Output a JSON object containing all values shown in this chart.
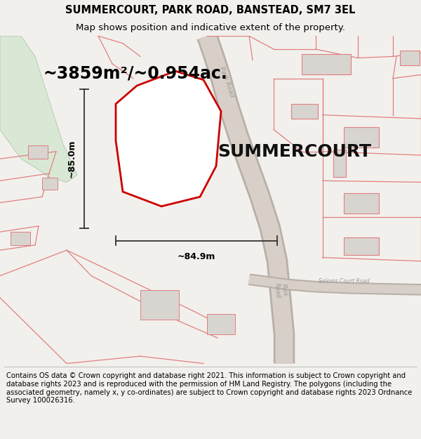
{
  "title_line1": "SUMMERCOURT, PARK ROAD, BANSTEAD, SM7 3EL",
  "title_line2": "Map shows position and indicative extent of the property.",
  "area_text": "~3859m²/~0.954ac.",
  "property_name": "SUMMERCOURT",
  "dim_vertical": "~85.0m",
  "dim_horizontal": "~84.9m",
  "footer_text": "Contains OS data © Crown copyright and database right 2021. This information is subject to Crown copyright and database rights 2023 and is reproduced with the permission of HM Land Registry. The polygons (including the associated geometry, namely x, y co-ordinates) are subject to Crown copyright and database rights 2023 Ordnance Survey 100026316.",
  "bg_color": "#f2f0ec",
  "map_bg": "#f5f3ef",
  "road_color": "#d8d0c8",
  "road_center_color": "#cfc7bf",
  "red_line_color": "#cc0000",
  "pink_line_color": "#e08080",
  "pink_fill_color": "#f5e8e8",
  "green_area_color": "#d8e8d4",
  "grey_building": "#d8d4d0",
  "footer_bg": "#ffffff",
  "title_fontsize": 10.5,
  "subtitle_fontsize": 9.5,
  "area_fontsize": 17,
  "property_name_fontsize": 18,
  "footer_fontsize": 7.2,
  "road_label_color": "#999999",
  "dim_line_color": "#333333"
}
